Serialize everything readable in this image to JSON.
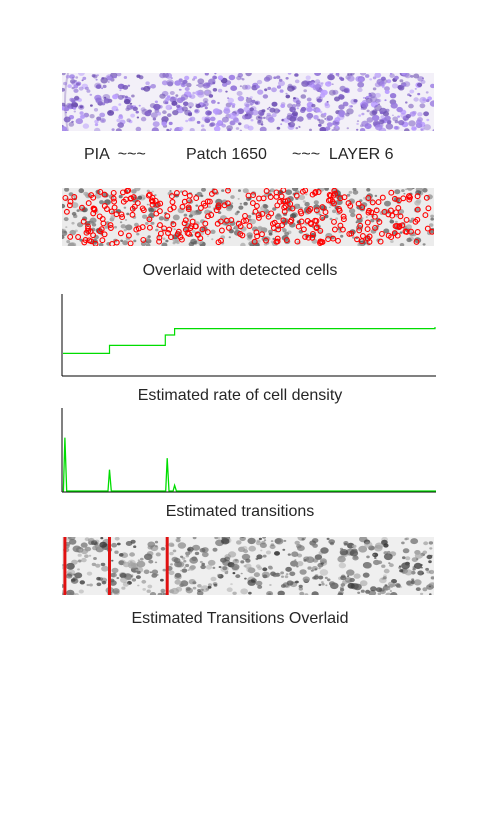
{
  "title": {
    "left": "PIA  ~~~",
    "center": "Patch 1650",
    "right": "~~~  LAYER 6"
  },
  "captions": {
    "detected": "Overlaid with detected cells",
    "density": "Estimated rate of cell density",
    "transitions": "Estimated transitions",
    "overlay": "Estimated Transitions Overlaid"
  },
  "colors": {
    "stain": "#7f5fb0",
    "detection": "#ff0000",
    "trace": "#00dd00",
    "transition_line": "#e01010",
    "grayscale_cells": "#555555"
  },
  "chart_data": [
    {
      "type": "line",
      "name": "density",
      "x": [
        0,
        0.12,
        0.125,
        0.27,
        0.275,
        0.3,
        1
      ],
      "y": [
        0.27,
        0.27,
        0.37,
        0.37,
        0.5,
        0.58,
        0.6
      ],
      "xlim": [
        0,
        1
      ],
      "ylim": [
        0,
        1
      ]
    },
    {
      "type": "line",
      "name": "transitions",
      "peaks_x": [
        0.005,
        0.125,
        0.28,
        0.3
      ],
      "peaks_y": [
        0.65,
        0.26,
        0.4,
        0.07
      ],
      "xlim": [
        0,
        1
      ],
      "ylim": [
        0,
        1
      ]
    }
  ],
  "transition_positions": [
    0.005,
    0.125,
    0.28
  ]
}
